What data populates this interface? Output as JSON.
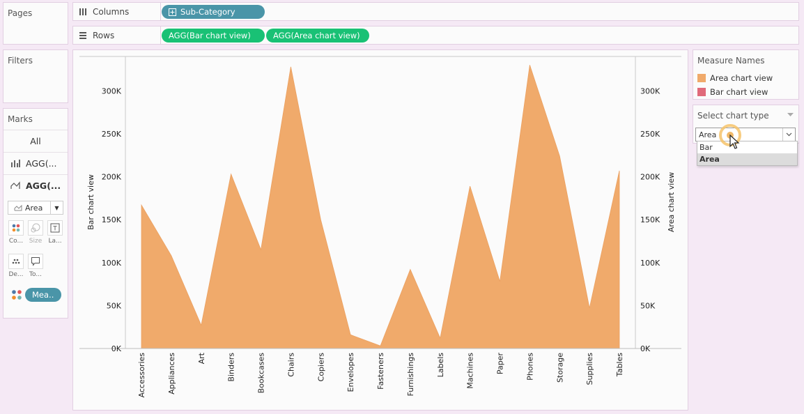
{
  "panels": {
    "pages_title": "Pages",
    "filters_title": "Filters",
    "marks_title": "Marks"
  },
  "shelves": {
    "columns_label": "Columns",
    "rows_label": "Rows",
    "columns_pills": [
      "Sub-Category"
    ],
    "rows_pills": [
      "AGG(Bar chart view)",
      "AGG(Area chart view)"
    ]
  },
  "marks": {
    "all_label": "All",
    "layer1_label": "AGG(...",
    "layer2_label": "AGG(...",
    "mark_type": "Area",
    "buttons": [
      "Co...",
      "Size",
      "La...",
      "De...",
      "To..."
    ],
    "measure_pill": "Mea.."
  },
  "legend": {
    "title": "Measure Names",
    "items": [
      {
        "label": "Area chart view",
        "color": "#f0aa6b"
      },
      {
        "label": "Bar chart view",
        "color": "#e06a7a"
      }
    ]
  },
  "parameter": {
    "title": "Select chart type",
    "value": "Area",
    "options": [
      "Bar",
      "Area"
    ],
    "selected": "Area"
  },
  "chart_data": {
    "type": "area",
    "categories": [
      "Accessories",
      "Appliances",
      "Art",
      "Binders",
      "Bookcases",
      "Chairs",
      "Copiers",
      "Envelopes",
      "Fasteners",
      "Furnishings",
      "Labels",
      "Machines",
      "Paper",
      "Phones",
      "Storage",
      "Supplies",
      "Tables"
    ],
    "series": [
      {
        "name": "Area chart view",
        "values": [
          167000,
          108000,
          27000,
          203000,
          115000,
          328000,
          150000,
          16000,
          3000,
          92000,
          12000,
          189000,
          78000,
          330000,
          224000,
          47000,
          207000
        ],
        "color": "#f0aa6b"
      }
    ],
    "y_left_label": "Bar chart view",
    "y_right_label": "Area chart view",
    "ylim": [
      0,
      340000
    ],
    "y_ticks": [
      "0K",
      "50K",
      "100K",
      "150K",
      "200K",
      "250K",
      "300K"
    ],
    "y_tick_values": [
      0,
      50000,
      100000,
      150000,
      200000,
      250000,
      300000
    ]
  }
}
